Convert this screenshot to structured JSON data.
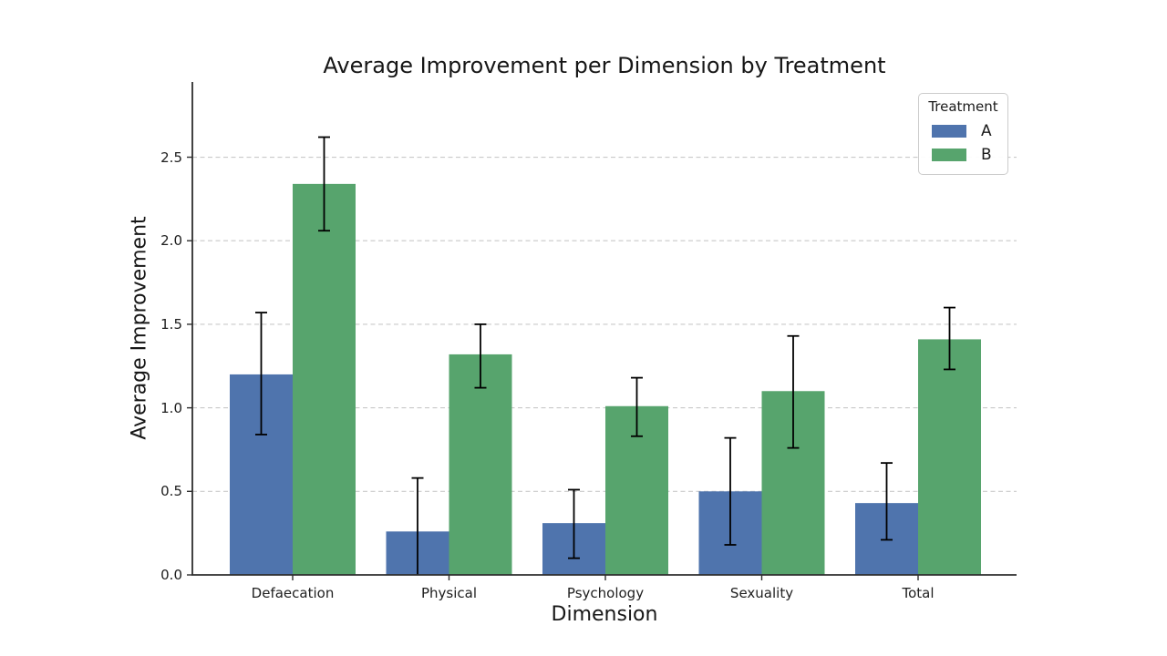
{
  "chart_data": {
    "type": "bar",
    "title": "Average Improvement per Dimension by Treatment",
    "xlabel": "Dimension",
    "ylabel": "Average Improvement",
    "categories": [
      "Defaecation",
      "Physical",
      "Psychology",
      "Sexuality",
      "Total"
    ],
    "series": [
      {
        "name": "A",
        "color": "#4f74ad",
        "values": [
          1.2,
          0.26,
          0.31,
          0.5,
          0.43
        ],
        "error_low": [
          0.84,
          -0.06,
          0.1,
          0.18,
          0.21
        ],
        "error_high": [
          1.57,
          0.58,
          0.51,
          0.82,
          0.67
        ]
      },
      {
        "name": "B",
        "color": "#57a46d",
        "values": [
          2.34,
          1.32,
          1.01,
          1.1,
          1.41
        ],
        "error_low": [
          2.06,
          1.12,
          0.83,
          0.76,
          1.23
        ],
        "error_high": [
          2.62,
          1.5,
          1.18,
          1.43,
          1.6
        ]
      }
    ],
    "ylim": [
      0,
      2.95
    ],
    "yticks": [
      "0.0",
      "0.5",
      "1.0",
      "1.5",
      "2.0",
      "2.5"
    ],
    "grid": "horizontal-dashed",
    "gridline_color": "#c9c9c9",
    "error_bar_color": "#000000",
    "axis_color": "#2e2e2e",
    "legend": {
      "title": "Treatment",
      "position": "upper right"
    }
  }
}
